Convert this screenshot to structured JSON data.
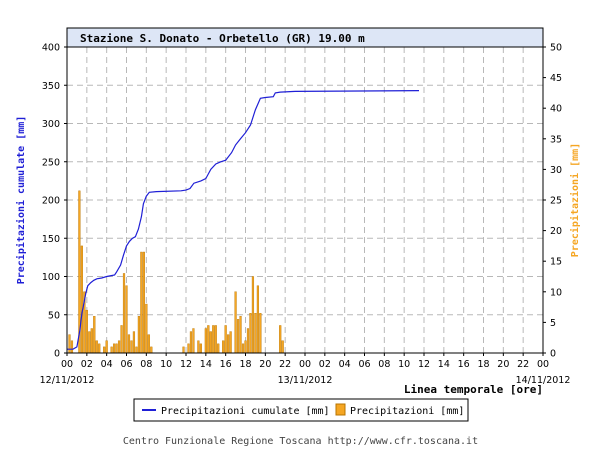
{
  "colors": {
    "cumulative": "#1f1fd6",
    "precip_fill": "#f5a623",
    "precip_stroke": "#b87400",
    "grid": "#b8b8b8",
    "title_bg": "#dde6f6"
  },
  "footer": "Centro Funzionale Regione Toscana http://www.cfr.toscana.it",
  "chart_data": {
    "type": "bar",
    "title": "Stazione S. Donato - Orbetello (GR) 19.00 m",
    "xlabel": "Linea temporale [ore]",
    "ylabel_left": "Precipitazioni cumulate [mm]",
    "ylabel_right": "Precipitazioni [mm]",
    "ylim_left": [
      0,
      400
    ],
    "ylim_right": [
      0,
      50
    ],
    "yticks_left": [
      "0",
      "50",
      "100",
      "150",
      "200",
      "250",
      "300",
      "350",
      "400"
    ],
    "yticks_right": [
      "0",
      "5",
      "10",
      "15",
      "20",
      "25",
      "30",
      "35",
      "40",
      "45",
      "50"
    ],
    "xlim_hours": [
      0,
      48
    ],
    "xticks": [
      "00",
      "02",
      "04",
      "06",
      "08",
      "10",
      "12",
      "14",
      "16",
      "18",
      "20",
      "22",
      "00",
      "02",
      "04",
      "06",
      "08",
      "10",
      "12",
      "14",
      "16",
      "18",
      "20",
      "22",
      "00"
    ],
    "dates": [
      "12/11/2012",
      "13/11/2012",
      "14/11/2012"
    ],
    "grid": true,
    "legend": {
      "position": "bottom",
      "entries": [
        "Precipitazioni cumulate [mm]",
        "Precipitazioni [mm]"
      ]
    },
    "series": [
      {
        "name": "Precipitazioni cumulate [mm]",
        "kind": "line",
        "axis": "left",
        "points": [
          [
            0.0,
            5
          ],
          [
            0.6,
            5
          ],
          [
            1.0,
            8
          ],
          [
            1.3,
            30
          ],
          [
            1.5,
            52
          ],
          [
            1.7,
            65
          ],
          [
            1.9,
            78
          ],
          [
            2.1,
            88
          ],
          [
            2.4,
            92
          ],
          [
            2.7,
            95
          ],
          [
            3.0,
            97
          ],
          [
            3.5,
            98
          ],
          [
            4.0,
            100
          ],
          [
            4.8,
            102
          ],
          [
            5.0,
            106
          ],
          [
            5.4,
            115
          ],
          [
            5.7,
            128
          ],
          [
            6.0,
            140
          ],
          [
            6.3,
            146
          ],
          [
            6.6,
            150
          ],
          [
            6.9,
            152
          ],
          [
            7.2,
            162
          ],
          [
            7.5,
            178
          ],
          [
            7.7,
            195
          ],
          [
            8.0,
            205
          ],
          [
            8.3,
            210
          ],
          [
            9.0,
            211
          ],
          [
            11.5,
            212
          ],
          [
            12.0,
            213
          ],
          [
            12.4,
            215
          ],
          [
            12.8,
            222
          ],
          [
            13.5,
            225
          ],
          [
            14.0,
            228
          ],
          [
            14.5,
            240
          ],
          [
            15.0,
            247
          ],
          [
            15.5,
            250
          ],
          [
            16.0,
            252
          ],
          [
            16.6,
            262
          ],
          [
            17.0,
            272
          ],
          [
            17.5,
            280
          ],
          [
            18.0,
            288
          ],
          [
            18.5,
            298
          ],
          [
            19.0,
            318
          ],
          [
            19.5,
            333
          ],
          [
            20.0,
            334
          ],
          [
            20.8,
            335
          ],
          [
            21.0,
            340
          ],
          [
            21.5,
            341
          ],
          [
            23.0,
            342
          ],
          [
            35.5,
            343
          ]
        ]
      },
      {
        "name": "Precipitazioni [mm]",
        "kind": "bar",
        "axis": "right",
        "points": [
          [
            0.25,
            3
          ],
          [
            0.5,
            2
          ],
          [
            1.25,
            26.5
          ],
          [
            1.5,
            17.5
          ],
          [
            1.75,
            10
          ],
          [
            2.0,
            7
          ],
          [
            2.25,
            3.5
          ],
          [
            2.5,
            4
          ],
          [
            2.75,
            6
          ],
          [
            3.0,
            2
          ],
          [
            3.25,
            1.5
          ],
          [
            3.75,
            1
          ],
          [
            4.0,
            2
          ],
          [
            4.5,
            1
          ],
          [
            4.75,
            1.5
          ],
          [
            5.0,
            1.5
          ],
          [
            5.25,
            2
          ],
          [
            5.5,
            4.5
          ],
          [
            5.75,
            13
          ],
          [
            6.0,
            11
          ],
          [
            6.25,
            3
          ],
          [
            6.5,
            2
          ],
          [
            6.75,
            3.5
          ],
          [
            7.0,
            1
          ],
          [
            7.25,
            6
          ],
          [
            7.5,
            16.5
          ],
          [
            7.75,
            16.5
          ],
          [
            8.0,
            8
          ],
          [
            8.25,
            3
          ],
          [
            8.5,
            1
          ],
          [
            11.75,
            1
          ],
          [
            12.25,
            1.5
          ],
          [
            12.5,
            3.5
          ],
          [
            12.75,
            4
          ],
          [
            13.25,
            2
          ],
          [
            13.5,
            1.5
          ],
          [
            14.0,
            4
          ],
          [
            14.25,
            4.5
          ],
          [
            14.5,
            3.5
          ],
          [
            14.75,
            4.5
          ],
          [
            15.0,
            4.5
          ],
          [
            15.25,
            1.5
          ],
          [
            15.75,
            2
          ],
          [
            16.0,
            4.5
          ],
          [
            16.25,
            3
          ],
          [
            16.5,
            3.5
          ],
          [
            17.0,
            10
          ],
          [
            17.25,
            5.5
          ],
          [
            17.5,
            6
          ],
          [
            17.75,
            1.5
          ],
          [
            18.0,
            2
          ],
          [
            18.25,
            4
          ],
          [
            18.5,
            6.5
          ],
          [
            18.75,
            12.5
          ],
          [
            19.0,
            6.5
          ],
          [
            19.25,
            11
          ],
          [
            19.5,
            6.5
          ],
          [
            21.5,
            4.5
          ],
          [
            21.75,
            2
          ]
        ]
      }
    ]
  }
}
